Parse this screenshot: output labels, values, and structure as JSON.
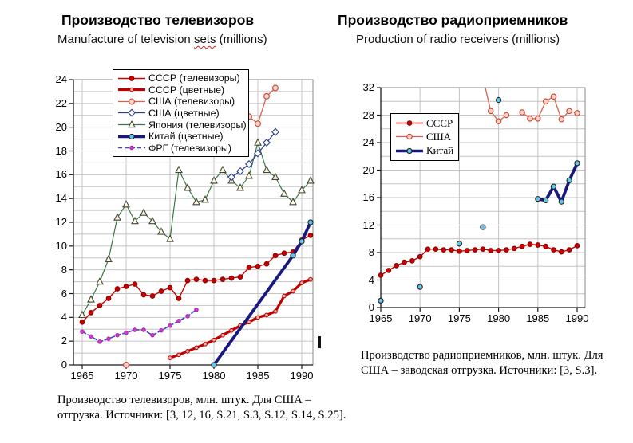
{
  "page": {
    "background": "#ffffff",
    "artifact_mark": "I"
  },
  "chart_data": [
    {
      "type": "line",
      "title": "Производство телевизоров",
      "subtitle": {
        "pre": "Manufacture of television ",
        "wavy": "sets",
        "post": " (millions)"
      },
      "caption": "Производство телевизоров, млн. штук. Для США – отгрузка. Источники: [3, 12, 16, S.21, S.3, S.12, S.14, S.25].",
      "xlabel": "",
      "ylabel": "",
      "ylim": [
        0,
        24
      ],
      "y_minor_step": 1,
      "y_ticks": [
        0,
        2,
        4,
        6,
        8,
        10,
        12,
        14,
        16,
        18,
        20,
        22,
        24
      ],
      "x_ticks": [
        1965,
        1970,
        1975,
        1980,
        1985,
        1990
      ],
      "x_range_years": [
        1964,
        1991.3
      ],
      "grid": true,
      "legend_position": "top-left-inside",
      "series": [
        {
          "name": "СССР (телевизоры)",
          "z": 4,
          "color": "#cc0000",
          "width": 1.4,
          "dash": "none",
          "marker": {
            "shape": "circle",
            "fill": "#cc0000",
            "stroke": "#8b0000",
            "r": 2.8
          },
          "segments": [
            [
              [
                1965,
                3.6
              ],
              [
                1966,
                4.4
              ],
              [
                1967,
                5.0
              ],
              [
                1968,
                5.6
              ],
              [
                1969,
                6.4
              ],
              [
                1970,
                6.6
              ],
              [
                1971,
                6.8
              ],
              [
                1972,
                5.9
              ],
              [
                1973,
                5.8
              ],
              [
                1974,
                6.2
              ],
              [
                1975,
                6.5
              ],
              [
                1976,
                5.6
              ],
              [
                1977,
                7.1
              ],
              [
                1978,
                7.2
              ],
              [
                1979,
                7.1
              ],
              [
                1980,
                7.1
              ],
              [
                1981,
                7.2
              ],
              [
                1982,
                7.3
              ],
              [
                1983,
                7.4
              ],
              [
                1984,
                8.2
              ],
              [
                1985,
                8.3
              ],
              [
                1986,
                8.5
              ],
              [
                1987,
                9.2
              ],
              [
                1988,
                9.4
              ],
              [
                1989,
                9.5
              ],
              [
                1990,
                10.5
              ],
              [
                1991,
                10.9
              ]
            ]
          ]
        },
        {
          "name": "СССР (цветные)",
          "z": 5,
          "color": "#c00000",
          "width": 3.2,
          "dash": "none",
          "marker": {
            "shape": "circle",
            "fill": "#f5b8ae",
            "stroke": "#c00000",
            "r": 2.3
          },
          "segments": [
            [
              [
                1975,
                0.6
              ],
              [
                1976,
                0.85
              ],
              [
                1977,
                1.15
              ],
              [
                1978,
                1.45
              ],
              [
                1979,
                1.75
              ],
              [
                1980,
                2.1
              ],
              [
                1981,
                2.5
              ],
              [
                1982,
                2.9
              ],
              [
                1983,
                3.3
              ],
              [
                1984,
                3.6
              ],
              [
                1985,
                4.0
              ],
              [
                1986,
                4.2
              ],
              [
                1987,
                4.5
              ],
              [
                1988,
                5.8
              ],
              [
                1989,
                6.2
              ],
              [
                1990,
                6.9
              ],
              [
                1991,
                7.2
              ]
            ]
          ]
        },
        {
          "name": "США (телевизоры)",
          "z": 2,
          "color": "#d9604f",
          "width": 1.3,
          "dash": "none",
          "marker": {
            "shape": "circle",
            "fill": "#fdd3c8",
            "stroke": "#cc4433",
            "r": 3.4
          },
          "segments": [
            [
              [
                1970,
                0
              ]
            ],
            [
              [
                1980,
                19.6
              ],
              [
                1981,
                20.8
              ],
              [
                1982,
                20.4
              ],
              [
                1983,
                19.6
              ],
              [
                1984,
                20.9
              ],
              [
                1985,
                20.3
              ],
              [
                1986,
                22.6
              ],
              [
                1987,
                23.3
              ]
            ]
          ]
        },
        {
          "name": "США (цветные)",
          "z": 3,
          "color": "#2b3f8e",
          "width": 1.3,
          "dash": "none",
          "marker": {
            "shape": "diamond",
            "fill": "#ffffff",
            "stroke": "#2b3f8e",
            "r": 4.2
          },
          "segments": [
            [
              [
                1982,
                15.8
              ],
              [
                1983,
                16.3
              ],
              [
                1984,
                16.9
              ],
              [
                1985,
                17.8
              ],
              [
                1986,
                18.7
              ],
              [
                1987,
                19.6
              ]
            ]
          ]
        },
        {
          "name": "Япония (телевизоры)",
          "z": 1,
          "color": "#3a7a44",
          "width": 1.2,
          "dash": "none",
          "marker": {
            "shape": "triangle",
            "fill": "#fbfbdd",
            "stroke": "#44443c",
            "r": 4.2
          },
          "segments": [
            [
              [
                1965,
                4.2
              ],
              [
                1966,
                5.5
              ],
              [
                1967,
                7.0
              ],
              [
                1968,
                8.9
              ],
              [
                1969,
                12.4
              ],
              [
                1970,
                13.5
              ],
              [
                1971,
                12.1
              ],
              [
                1972,
                12.8
              ],
              [
                1973,
                12.1
              ],
              [
                1974,
                11.2
              ],
              [
                1975,
                10.6
              ],
              [
                1976,
                16.4
              ],
              [
                1977,
                14.9
              ],
              [
                1978,
                13.7
              ],
              [
                1979,
                13.9
              ],
              [
                1980,
                15.5
              ],
              [
                1981,
                16.4
              ],
              [
                1982,
                15.5
              ],
              [
                1983,
                14.9
              ],
              [
                1984,
                15.9
              ],
              [
                1985,
                18.7
              ],
              [
                1986,
                16.4
              ],
              [
                1987,
                15.8
              ],
              [
                1988,
                14.4
              ],
              [
                1989,
                13.7
              ],
              [
                1990,
                14.7
              ],
              [
                1991,
                15.5
              ]
            ]
          ]
        },
        {
          "name": "Китай (цветные)",
          "z": 7,
          "color": "#18187e",
          "width": 3.8,
          "dash": "none",
          "marker": {
            "shape": "circle",
            "fill": "#5fc8e8",
            "stroke": "#222222",
            "r": 3.1
          },
          "segments": [
            [
              [
                1980,
                0
              ],
              [
                1989,
                9.2
              ],
              [
                1990,
                10.4
              ],
              [
                1991,
                12.0
              ]
            ]
          ]
        },
        {
          "name": "ФРГ (телевизоры)",
          "z": 6,
          "color": "#4040c4",
          "width": 1.6,
          "dash": "5 3",
          "marker": {
            "shape": "circle",
            "fill": "#d83ad8",
            "stroke": "#a524a5",
            "r": 2.2
          },
          "segments": [
            [
              [
                1965,
                2.8
              ],
              [
                1966,
                2.4
              ],
              [
                1967,
                1.95
              ],
              [
                1968,
                2.2
              ],
              [
                1969,
                2.5
              ],
              [
                1970,
                2.7
              ],
              [
                1971,
                2.95
              ],
              [
                1972,
                2.95
              ],
              [
                1973,
                2.5
              ],
              [
                1974,
                2.9
              ],
              [
                1975,
                3.3
              ],
              [
                1976,
                3.7
              ],
              [
                1977,
                4.1
              ],
              [
                1978,
                4.65
              ]
            ]
          ]
        }
      ]
    },
    {
      "type": "line",
      "title": "Производство радиоприемников",
      "subtitle": "Production of radio receivers (millions)",
      "caption": "Производство радиоприемников, млн. штук. Для США – заводская отгрузка. Источники: [3, S.3].",
      "xlabel": "",
      "ylabel": "",
      "ylim": [
        0,
        32
      ],
      "y_minor_step": 2,
      "y_ticks": [
        0,
        4,
        8,
        12,
        16,
        20,
        24,
        28,
        32
      ],
      "x_ticks": [
        1965,
        1970,
        1975,
        1980,
        1985,
        1990
      ],
      "x_range_years": [
        1965,
        1991
      ],
      "grid": true,
      "legend_position": "upper-left-inside",
      "series": [
        {
          "name": "СССР",
          "z": 2,
          "color": "#cc0000",
          "width": 1.4,
          "dash": "none",
          "marker": {
            "shape": "circle",
            "fill": "#cc0000",
            "stroke": "#8b0000",
            "r": 2.8
          },
          "segments": [
            [
              [
                1965,
                4.7
              ],
              [
                1966,
                5.4
              ],
              [
                1967,
                6.1
              ],
              [
                1968,
                6.6
              ],
              [
                1969,
                6.8
              ],
              [
                1970,
                7.4
              ],
              [
                1971,
                8.5
              ],
              [
                1972,
                8.5
              ],
              [
                1973,
                8.4
              ],
              [
                1974,
                8.4
              ],
              [
                1975,
                8.2
              ],
              [
                1976,
                8.3
              ],
              [
                1977,
                8.4
              ],
              [
                1978,
                8.5
              ],
              [
                1979,
                8.3
              ],
              [
                1980,
                8.3
              ],
              [
                1981,
                8.4
              ],
              [
                1982,
                8.6
              ],
              [
                1983,
                8.9
              ],
              [
                1984,
                9.2
              ],
              [
                1985,
                9.1
              ],
              [
                1986,
                8.9
              ],
              [
                1987,
                8.4
              ],
              [
                1988,
                8.1
              ],
              [
                1989,
                8.4
              ],
              [
                1990,
                9.0
              ]
            ]
          ]
        },
        {
          "name": "США",
          "z": 1,
          "color": "#d9604f",
          "width": 1.3,
          "dash": "none",
          "marker": {
            "shape": "circle",
            "fill": "#fdd3c8",
            "stroke": "#cc4433",
            "r": 3.2
          },
          "segments": [
            [
              [
                1978,
                33.5
              ],
              [
                1979,
                28.6
              ],
              [
                1980,
                27.1
              ],
              [
                1981,
                28.0
              ]
            ],
            [
              [
                1983,
                28.4
              ],
              [
                1984,
                27.5
              ],
              [
                1985,
                27.5
              ],
              [
                1986,
                30.0
              ],
              [
                1987,
                30.7
              ],
              [
                1988,
                27.4
              ],
              [
                1989,
                28.6
              ],
              [
                1990,
                28.3
              ]
            ]
          ]
        },
        {
          "name": "Китай",
          "z": 3,
          "color": "#18187e",
          "width": 3.8,
          "dash": "none",
          "marker": {
            "shape": "circle",
            "fill": "#5fc8e8",
            "stroke": "#222222",
            "r": 3.1
          },
          "segments": [
            [
              [
                1965,
                1.0
              ]
            ],
            [
              [
                1970,
                3.0
              ]
            ],
            [
              [
                1975,
                9.3
              ]
            ],
            [
              [
                1978,
                11.7
              ]
            ],
            [
              [
                1980,
                30.2
              ]
            ],
            [
              [
                1985,
                15.8
              ],
              [
                1986,
                15.6
              ],
              [
                1987,
                17.6
              ],
              [
                1988,
                15.4
              ],
              [
                1989,
                18.5
              ],
              [
                1990,
                21.0
              ]
            ]
          ]
        }
      ]
    }
  ]
}
